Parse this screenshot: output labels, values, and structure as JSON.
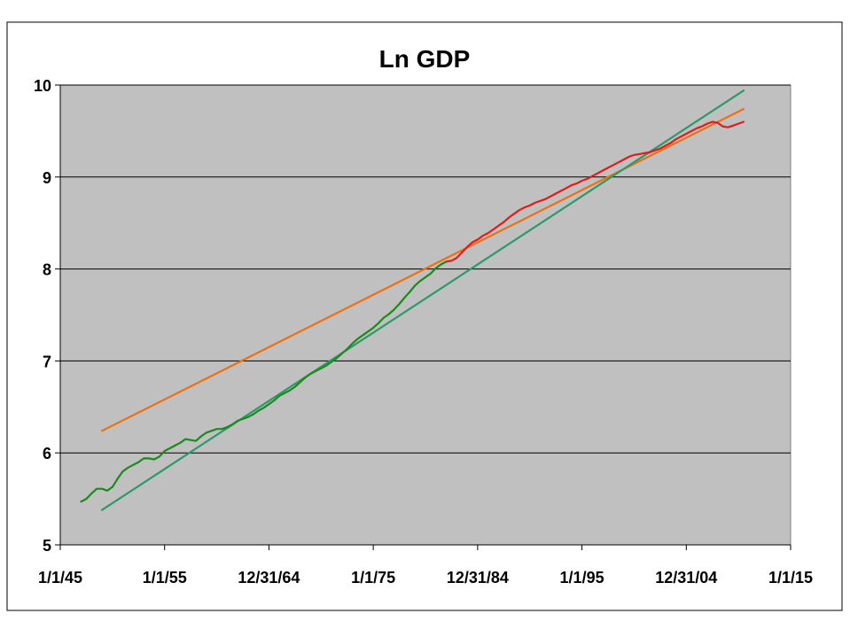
{
  "chart_data": {
    "type": "line",
    "title": "Ln GDP",
    "xlabel": "",
    "ylabel": "",
    "xlim": [
      1945.0,
      2015.0
    ],
    "ylim": [
      5,
      10
    ],
    "grid": true,
    "legend": "none",
    "y_ticks": [
      5,
      6,
      7,
      8,
      9,
      10
    ],
    "x_ticks": [
      {
        "x": 1945.0,
        "label": "1/1/45"
      },
      {
        "x": 1955.0,
        "label": "1/1/55"
      },
      {
        "x": 1965.0,
        "label": "12/31/64"
      },
      {
        "x": 1975.0,
        "label": "1/1/75"
      },
      {
        "x": 1985.0,
        "label": "12/31/84"
      },
      {
        "x": 1995.0,
        "label": "1/1/95"
      },
      {
        "x": 2005.0,
        "label": "12/31/04"
      },
      {
        "x": 2015.0,
        "label": "1/1/15"
      }
    ],
    "series": [
      {
        "color": "#00a000",
        "stroke": "#1a8a1a",
        "x": [
          1947.0,
          1947.5,
          1948.0,
          1948.5,
          1949.0,
          1949.5,
          1950.0,
          1950.5,
          1951.0,
          1951.5,
          1952.0,
          1952.5,
          1953.0,
          1953.5,
          1954.0,
          1954.5,
          1955.0,
          1955.5,
          1956.0,
          1956.5,
          1957.0,
          1957.5,
          1958.0,
          1958.5,
          1959.0,
          1959.5,
          1960.0,
          1960.5,
          1961.0,
          1961.5,
          1962.0,
          1962.5,
          1963.0,
          1963.5,
          1964.0,
          1964.5,
          1965.0,
          1965.5,
          1966.0,
          1966.5,
          1967.0,
          1967.5,
          1968.0,
          1968.5,
          1969.0,
          1969.5,
          1970.0,
          1970.5,
          1971.0,
          1971.5,
          1972.0,
          1972.5,
          1973.0,
          1973.5,
          1974.0,
          1974.5,
          1975.0,
          1975.5,
          1976.0,
          1976.5,
          1977.0,
          1977.5,
          1978.0,
          1978.5,
          1979.0,
          1979.5,
          1980.0,
          1980.5,
          1981.0,
          1981.5,
          1982.0
        ],
        "values": [
          5.47,
          5.5,
          5.56,
          5.61,
          5.61,
          5.59,
          5.63,
          5.72,
          5.8,
          5.84,
          5.87,
          5.9,
          5.94,
          5.94,
          5.93,
          5.96,
          6.02,
          6.05,
          6.08,
          6.11,
          6.15,
          6.14,
          6.13,
          6.18,
          6.22,
          6.24,
          6.26,
          6.26,
          6.28,
          6.31,
          6.35,
          6.37,
          6.39,
          6.42,
          6.46,
          6.49,
          6.53,
          6.57,
          6.62,
          6.65,
          6.68,
          6.72,
          6.77,
          6.82,
          6.86,
          6.89,
          6.92,
          6.95,
          6.99,
          7.03,
          7.08,
          7.13,
          7.19,
          7.24,
          7.28,
          7.32,
          7.36,
          7.41,
          7.47,
          7.51,
          7.56,
          7.62,
          7.69,
          7.75,
          7.82,
          7.87,
          7.91,
          7.95,
          8.01,
          8.05,
          8.08
        ]
      },
      {
        "color": "#e00000",
        "stroke": "#e21b1b",
        "x": [
          1982.0,
          1982.5,
          1983.0,
          1983.5,
          1984.0,
          1984.5,
          1985.0,
          1985.5,
          1986.0,
          1986.5,
          1987.0,
          1987.5,
          1988.0,
          1988.5,
          1989.0,
          1989.5,
          1990.0,
          1990.5,
          1991.0,
          1991.5,
          1992.0,
          1992.5,
          1993.0,
          1993.5,
          1994.0,
          1994.5,
          1995.0,
          1995.5,
          1996.0,
          1996.5,
          1997.0,
          1997.5,
          1998.0,
          1998.5,
          1999.0,
          1999.5,
          2000.0,
          2000.5,
          2001.0,
          2001.5,
          2002.0,
          2002.5,
          2003.0,
          2003.5,
          2004.0,
          2004.5,
          2005.0,
          2005.5,
          2006.0,
          2006.5,
          2007.0,
          2007.5,
          2008.0,
          2008.5,
          2009.0,
          2009.5,
          2010.0,
          2010.5
        ],
        "values": [
          8.08,
          8.09,
          8.12,
          8.18,
          8.24,
          8.29,
          8.32,
          8.36,
          8.39,
          8.43,
          8.47,
          8.51,
          8.56,
          8.6,
          8.64,
          8.67,
          8.69,
          8.72,
          8.74,
          8.76,
          8.79,
          8.82,
          8.85,
          8.88,
          8.91,
          8.93,
          8.96,
          8.98,
          9.01,
          9.04,
          9.07,
          9.1,
          9.13,
          9.16,
          9.19,
          9.22,
          9.24,
          9.25,
          9.26,
          9.27,
          9.29,
          9.31,
          9.34,
          9.37,
          9.41,
          9.44,
          9.47,
          9.5,
          9.53,
          9.55,
          9.58,
          9.6,
          9.59,
          9.55,
          9.54,
          9.56,
          9.58,
          9.6
        ]
      },
      {
        "color": "#ff8000",
        "stroke": "#f07010",
        "x": [
          1949.0,
          2010.5
        ],
        "values": [
          6.24,
          9.74
        ]
      },
      {
        "color": "#30a070",
        "stroke": "#2a9a6a",
        "x": [
          1949.0,
          2010.5
        ],
        "values": [
          5.38,
          9.94
        ]
      }
    ]
  }
}
